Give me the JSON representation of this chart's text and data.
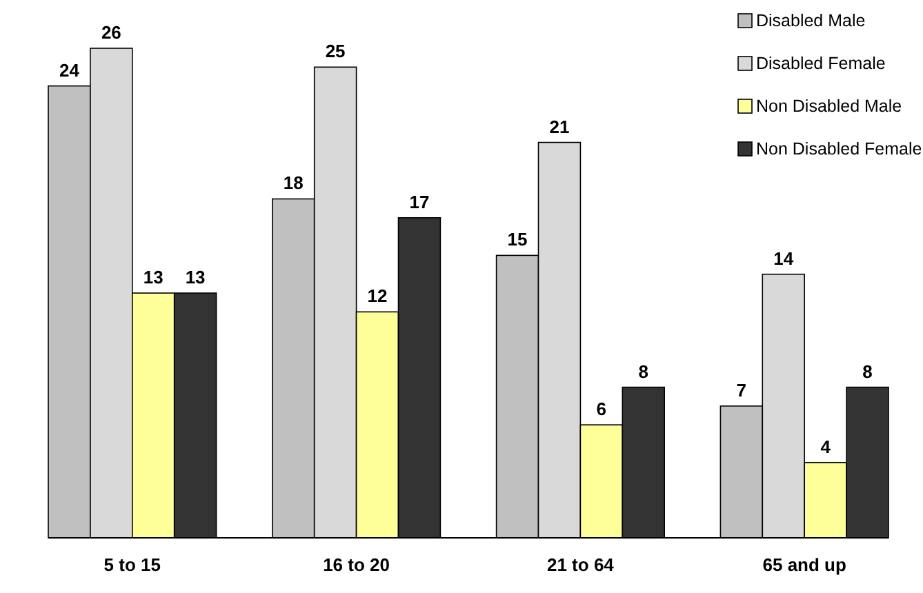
{
  "chart_data": {
    "type": "bar",
    "categories": [
      "5 to 15",
      "16 to 20",
      "21 to 64",
      "65 and up"
    ],
    "series": [
      {
        "name": "Disabled Male",
        "color": "#c0c0c0",
        "values": [
          24,
          18,
          15,
          7
        ]
      },
      {
        "name": "Disabled Female",
        "color": "#d9d9d9",
        "values": [
          26,
          25,
          21,
          14
        ]
      },
      {
        "name": "Non Disabled Male",
        "color": "#ffff99",
        "values": [
          13,
          12,
          6,
          4
        ]
      },
      {
        "name": "Non Disabled Female",
        "color": "#333333",
        "values": [
          13,
          17,
          8,
          8
        ]
      }
    ],
    "data_labels": true,
    "legend": "top right"
  }
}
